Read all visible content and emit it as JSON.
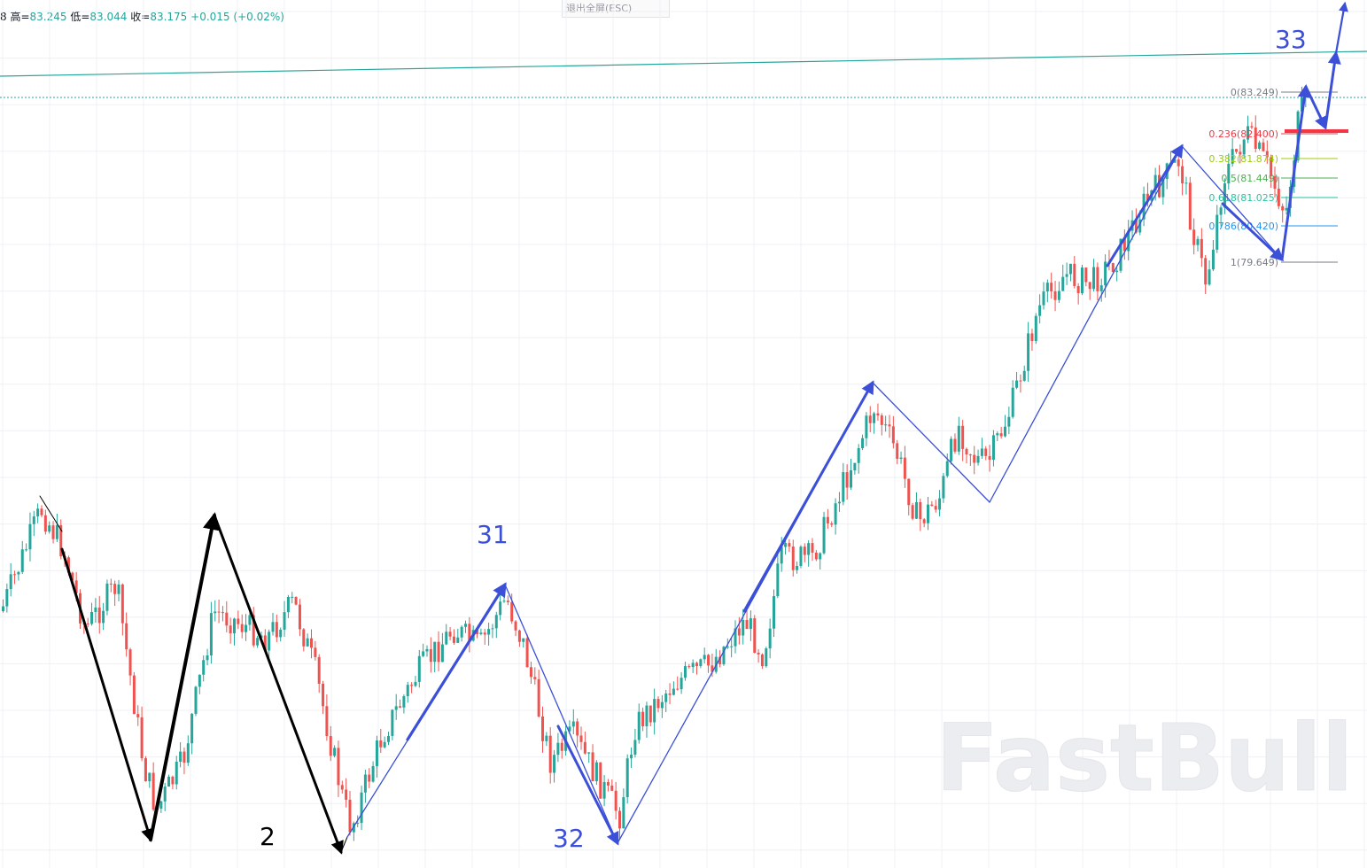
{
  "header": {
    "prefix": "8",
    "high_label": "高=",
    "high": "83.245",
    "low_label": "低=",
    "low": "83.044",
    "close_label": "收=",
    "close": "83.175",
    "change": "+0.015",
    "change_pct": "(+0.02%)"
  },
  "toolbar": {
    "exit_fullscreen": "退出全屏(ESC)"
  },
  "watermark": "FastBull",
  "colors": {
    "up": "#26a69a",
    "down": "#ef5350",
    "wave_blue": "#3b4fd8",
    "trend": "#26a69a",
    "resistance": "#f23645"
  },
  "chart_data": {
    "type": "candlestick",
    "wave_labels": [
      {
        "text": "2",
        "color": "#000000"
      },
      {
        "text": "31",
        "color": "#3b4fd8"
      },
      {
        "text": "32",
        "color": "#3b4fd8"
      },
      {
        "text": "33",
        "color": "#3b4fd8"
      }
    ],
    "fibonacci": {
      "levels": [
        {
          "ratio": "0",
          "price": "83.249",
          "label": "0(83.249)",
          "color": "#787b86"
        },
        {
          "ratio": "0.236",
          "price": "82.400",
          "label": "0.236(82.400)",
          "color": "#f23645"
        },
        {
          "ratio": "0.382",
          "price": "81.874",
          "label": "0.382(81.874)",
          "color": "#9ccc0e"
        },
        {
          "ratio": "0.5",
          "price": "81.449",
          "label": "0.5(81.449)",
          "color": "#4caf50"
        },
        {
          "ratio": "0.618",
          "price": "81.025",
          "label": "0.618(81.025)",
          "color": "#26c6a0"
        },
        {
          "ratio": "0.786",
          "price": "80.420",
          "label": "0.786(80.420)",
          "color": "#2196f3"
        },
        {
          "ratio": "1",
          "price": "79.649",
          "label": "1(79.649)",
          "color": "#787b86"
        }
      ]
    }
  }
}
